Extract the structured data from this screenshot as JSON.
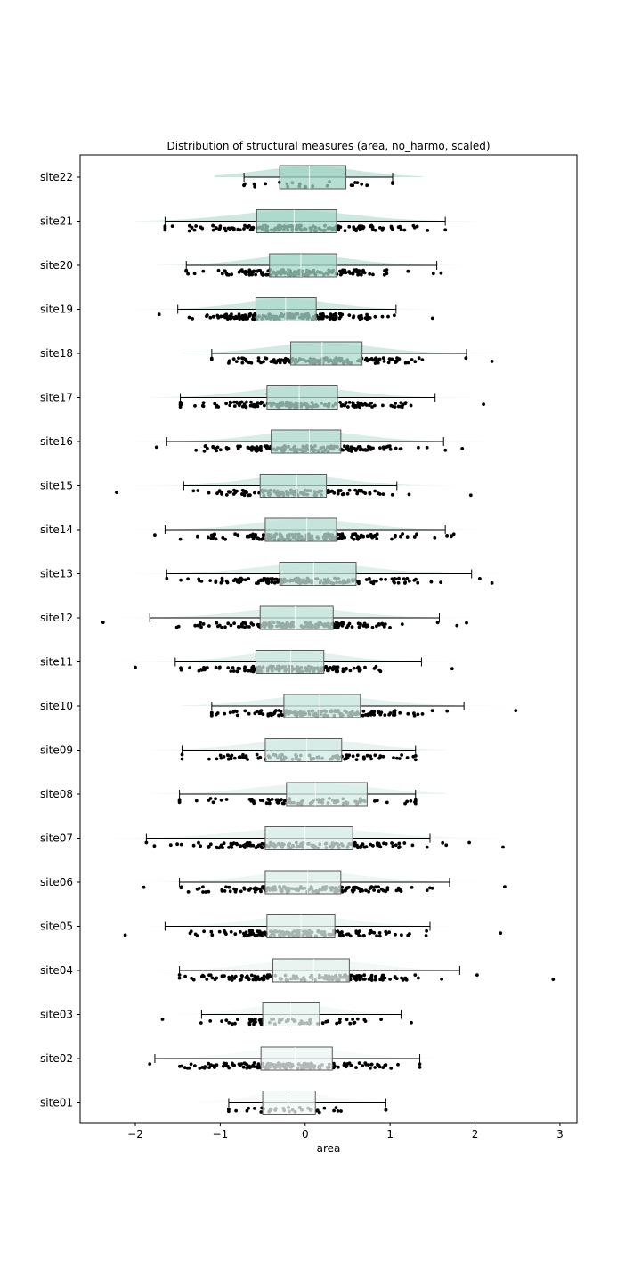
{
  "chart_data": {
    "type": "raincloud",
    "orientation": "horizontal",
    "title": "Distribution of structural measures (area, no_harmo, scaled)",
    "xlabel": "area",
    "ylabel": "",
    "xlim": [
      -2.65,
      3.2
    ],
    "xticks": [
      -2,
      -1,
      0,
      1,
      2,
      3
    ],
    "xtick_labels": [
      "−2",
      "−1",
      "0",
      "1",
      "2",
      "3"
    ],
    "grid": false,
    "legend": "none",
    "colors": {
      "start": "#9ed3c4",
      "end": "#f2f8f6",
      "box_edge": "#5a5a5a",
      "point": "#000000"
    },
    "categories": [
      "site22",
      "site21",
      "site20",
      "site19",
      "site18",
      "site17",
      "site16",
      "site15",
      "site14",
      "site13",
      "site12",
      "site11",
      "site10",
      "site09",
      "site08",
      "site07",
      "site06",
      "site05",
      "site04",
      "site03",
      "site02",
      "site01"
    ],
    "series": [
      {
        "site": "site22",
        "whisker_low": -0.72,
        "q1": -0.3,
        "median": 0.05,
        "q3": 0.48,
        "whisker_high": 1.03,
        "min": -0.72,
        "max": 1.03,
        "n": 25
      },
      {
        "site": "site21",
        "whisker_low": -1.65,
        "q1": -0.57,
        "median": -0.13,
        "q3": 0.37,
        "whisker_high": 1.65,
        "min": -1.65,
        "max": 1.65,
        "n": 220
      },
      {
        "site": "site20",
        "whisker_low": -1.4,
        "q1": -0.42,
        "median": -0.05,
        "q3": 0.37,
        "whisker_high": 1.55,
        "min": -1.4,
        "max": 1.6,
        "n": 200
      },
      {
        "site": "site19",
        "whisker_low": -1.5,
        "q1": -0.58,
        "median": -0.23,
        "q3": 0.13,
        "whisker_high": 1.07,
        "min": -1.72,
        "max": 1.5,
        "n": 160
      },
      {
        "site": "site18",
        "whisker_low": -1.1,
        "q1": -0.17,
        "median": 0.2,
        "q3": 0.67,
        "whisker_high": 1.9,
        "min": -1.1,
        "max": 2.2,
        "n": 200
      },
      {
        "site": "site17",
        "whisker_low": -1.47,
        "q1": -0.45,
        "median": -0.07,
        "q3": 0.38,
        "whisker_high": 1.53,
        "min": -1.47,
        "max": 2.1,
        "n": 240
      },
      {
        "site": "site16",
        "whisker_low": -1.63,
        "q1": -0.4,
        "median": 0.05,
        "q3": 0.42,
        "whisker_high": 1.63,
        "min": -1.75,
        "max": 1.85,
        "n": 300
      },
      {
        "site": "site15",
        "whisker_low": -1.43,
        "q1": -0.53,
        "median": -0.1,
        "q3": 0.25,
        "whisker_high": 1.08,
        "min": -2.22,
        "max": 1.95,
        "n": 140
      },
      {
        "site": "site14",
        "whisker_low": -1.65,
        "q1": -0.47,
        "median": 0.02,
        "q3": 0.37,
        "whisker_high": 1.65,
        "min": -1.77,
        "max": 1.75,
        "n": 280
      },
      {
        "site": "site13",
        "whisker_low": -1.63,
        "q1": -0.3,
        "median": 0.1,
        "q3": 0.6,
        "whisker_high": 1.96,
        "min": -1.63,
        "max": 2.2,
        "n": 230
      },
      {
        "site": "site12",
        "whisker_low": -1.83,
        "q1": -0.53,
        "median": -0.12,
        "q3": 0.33,
        "whisker_high": 1.58,
        "min": -2.38,
        "max": 1.9,
        "n": 180
      },
      {
        "site": "site11",
        "whisker_low": -1.53,
        "q1": -0.58,
        "median": -0.17,
        "q3": 0.22,
        "whisker_high": 1.37,
        "min": -2.0,
        "max": 1.73,
        "n": 200
      },
      {
        "site": "site10",
        "whisker_low": -1.1,
        "q1": -0.25,
        "median": 0.17,
        "q3": 0.65,
        "whisker_high": 1.87,
        "min": -1.1,
        "max": 2.48,
        "n": 150
      },
      {
        "site": "site09",
        "whisker_low": -1.45,
        "q1": -0.47,
        "median": 0.02,
        "q3": 0.43,
        "whisker_high": 1.3,
        "min": -1.45,
        "max": 1.3,
        "n": 100
      },
      {
        "site": "site08",
        "whisker_low": -1.48,
        "q1": -0.22,
        "median": 0.12,
        "q3": 0.73,
        "whisker_high": 1.3,
        "min": -1.48,
        "max": 1.3,
        "n": 90
      },
      {
        "site": "site07",
        "whisker_low": -1.87,
        "q1": -0.47,
        "median": 0.0,
        "q3": 0.56,
        "whisker_high": 1.47,
        "min": -1.87,
        "max": 2.33,
        "n": 170
      },
      {
        "site": "site06",
        "whisker_low": -1.48,
        "q1": -0.47,
        "median": 0.03,
        "q3": 0.42,
        "whisker_high": 1.7,
        "min": -1.9,
        "max": 2.35,
        "n": 240
      },
      {
        "site": "site05",
        "whisker_low": -1.65,
        "q1": -0.45,
        "median": -0.05,
        "q3": 0.35,
        "whisker_high": 1.47,
        "min": -2.12,
        "max": 2.3,
        "n": 220
      },
      {
        "site": "site04",
        "whisker_low": -1.48,
        "q1": -0.38,
        "median": 0.1,
        "q3": 0.52,
        "whisker_high": 1.82,
        "min": -1.48,
        "max": 2.92,
        "n": 250
      },
      {
        "site": "site03",
        "whisker_low": -1.22,
        "q1": -0.5,
        "median": -0.17,
        "q3": 0.17,
        "whisker_high": 1.13,
        "min": -1.68,
        "max": 1.25,
        "n": 70
      },
      {
        "site": "site02",
        "whisker_low": -1.77,
        "q1": -0.52,
        "median": -0.12,
        "q3": 0.32,
        "whisker_high": 1.35,
        "min": -1.83,
        "max": 1.35,
        "n": 200
      },
      {
        "site": "site01",
        "whisker_low": -0.9,
        "q1": -0.5,
        "median": -0.2,
        "q3": 0.12,
        "whisker_high": 0.95,
        "min": -0.9,
        "max": 0.95,
        "n": 40
      }
    ]
  }
}
